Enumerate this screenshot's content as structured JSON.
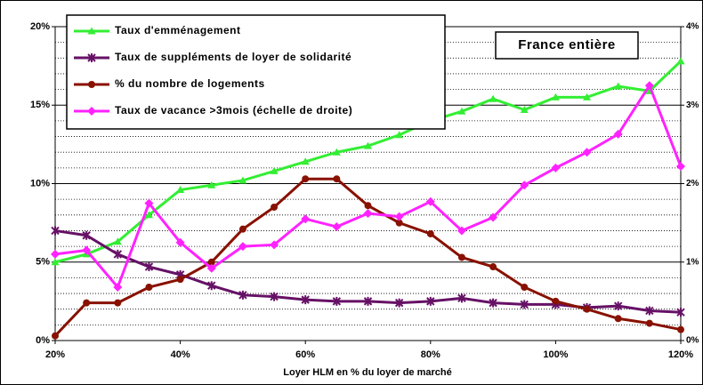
{
  "chart_data": {
    "type": "line",
    "xlabel": "Loyer HLM en % du loyer de marché",
    "annotation": "France entière",
    "x": [
      20,
      25,
      30,
      35,
      40,
      45,
      50,
      55,
      60,
      65,
      70,
      75,
      80,
      85,
      90,
      95,
      100,
      105,
      110,
      115,
      120
    ],
    "xlim": [
      20,
      120
    ],
    "xticks": [
      {
        "value": 20,
        "label": "20%"
      },
      {
        "value": 40,
        "label": "40%"
      },
      {
        "value": 60,
        "label": "60%"
      },
      {
        "value": 80,
        "label": "80%"
      },
      {
        "value": 100,
        "label": "100%"
      },
      {
        "value": 120,
        "label": "120%"
      }
    ],
    "ylim": [
      0,
      20
    ],
    "yticks": [
      {
        "value": 0,
        "label": "0%"
      },
      {
        "value": 5,
        "label": "5%"
      },
      {
        "value": 10,
        "label": "10%"
      },
      {
        "value": 15,
        "label": "15%"
      },
      {
        "value": 20,
        "label": "20%"
      }
    ],
    "y2lim": [
      0,
      4
    ],
    "y2ticks": [
      {
        "value": 0,
        "label": "0%"
      },
      {
        "value": 1,
        "label": "1%"
      },
      {
        "value": 2,
        "label": "2%"
      },
      {
        "value": 3,
        "label": "3%"
      },
      {
        "value": 4,
        "label": "4%"
      }
    ],
    "grid": true,
    "legend": "upper left",
    "series": [
      {
        "name": "Taux d'emménagement",
        "color": "#33ee33",
        "marker": "triangle",
        "values": [
          5.0,
          5.5,
          6.3,
          8.0,
          9.6,
          9.9,
          10.2,
          10.8,
          11.4,
          12.0,
          12.4,
          13.1,
          14.0,
          14.6,
          15.4,
          14.7,
          15.5,
          15.5,
          16.2,
          15.9,
          17.8
        ]
      },
      {
        "name": "Taux de suppléments de loyer de solidarité",
        "color": "#661166",
        "marker": "star",
        "values": [
          7.0,
          6.7,
          5.5,
          4.7,
          4.2,
          3.5,
          2.9,
          2.8,
          2.6,
          2.5,
          2.5,
          2.4,
          2.5,
          2.7,
          2.4,
          2.3,
          2.3,
          2.1,
          2.2,
          1.9,
          1.8
        ]
      },
      {
        "name": "% du nombre de logements",
        "color": "#881100",
        "marker": "circle",
        "values": [
          0.3,
          2.4,
          2.4,
          3.4,
          3.9,
          5.0,
          7.1,
          8.5,
          10.3,
          10.3,
          8.6,
          7.5,
          6.8,
          5.3,
          4.7,
          3.4,
          2.5,
          2.0,
          1.4,
          1.1,
          0.7
        ]
      },
      {
        "name": "Taux de vacance >3mois (échelle de droite)",
        "color": "#ff22ff",
        "marker": "diamond",
        "axis": "y2",
        "values": [
          1.1,
          1.15,
          0.68,
          1.75,
          1.25,
          0.92,
          1.2,
          1.22,
          1.55,
          1.45,
          1.62,
          1.58,
          1.77,
          1.4,
          1.57,
          1.98,
          2.2,
          2.4,
          2.63,
          3.25,
          2.22
        ]
      }
    ]
  }
}
